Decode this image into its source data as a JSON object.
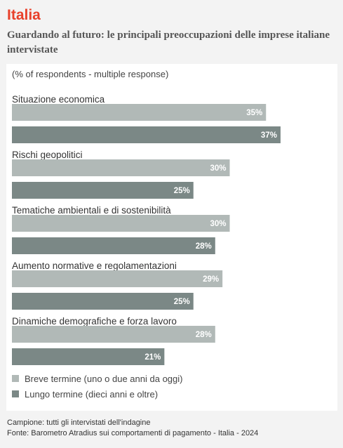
{
  "header": {
    "title": "Italia",
    "subtitle": "Guardando al futuro: le principali preoccupazioni delle imprese italiane intervistate"
  },
  "note": "(% of respondents - multiple response)",
  "chart_data": {
    "type": "bar",
    "orientation": "horizontal",
    "unit": "%",
    "categories": [
      "Situazione economica",
      "Rischi geopolitici",
      "Tematiche ambientali e di sostenibilità",
      "Aumento normative e regolamentazioni",
      "Dinamiche demografiche e forza lavoro"
    ],
    "series": [
      {
        "name": "Breve termine (uno o due anni da oggi)",
        "color": "#b1b9b7",
        "values": [
          35,
          30,
          30,
          29,
          28
        ]
      },
      {
        "name": "Lungo termine (dieci anni e oltre)",
        "color": "#7b8886",
        "values": [
          37,
          25,
          28,
          25,
          21
        ]
      }
    ],
    "xlim": [
      0,
      40
    ],
    "grid": false,
    "legend_position": "bottom-left"
  },
  "footer": {
    "sample": "Campione: tutti gli intervistati dell'indagine",
    "source": "Fonte: Barometro Atradius sui comportamenti di pagamento - Italia - 2024"
  }
}
